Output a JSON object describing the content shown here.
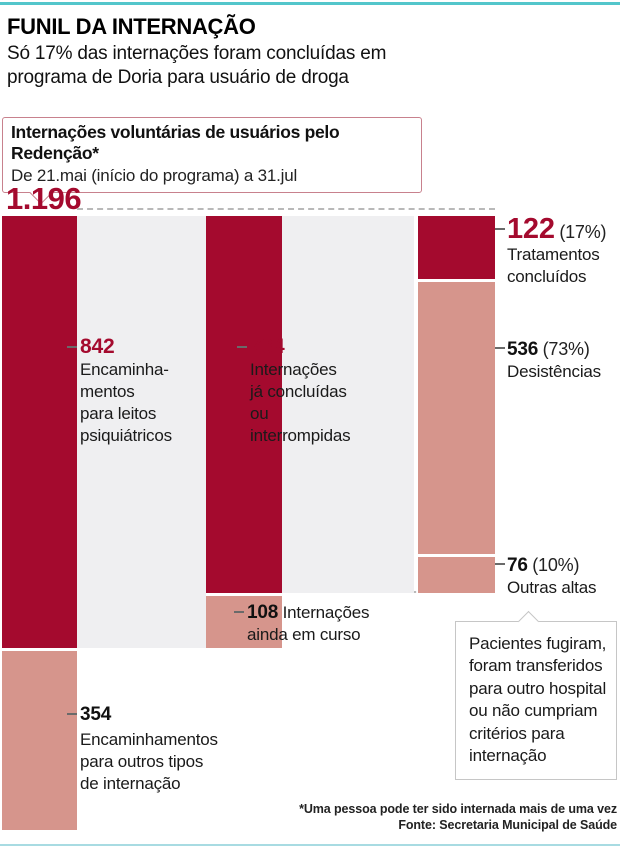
{
  "header": {
    "title": "FUNIL DA INTERNAÇÃO",
    "subtitle_lines": [
      "Só 17% das internações foram concluídas em",
      "programa de Doria para usuário de droga"
    ]
  },
  "callout": {
    "title": "Internações voluntárias de usuários pelo Redenção*",
    "period": "De 21.mai (início do programa) a 31.jul"
  },
  "total_display": "1.196",
  "labels": {
    "l842": {
      "value": "842",
      "lines": [
        "Encaminha-",
        "mentos",
        "para leitos",
        "psiquiátricos"
      ]
    },
    "l734": {
      "value": "734",
      "lines": [
        "Internações",
        "já concluídas",
        "ou",
        "interrompidas"
      ]
    },
    "l122": {
      "value": "122",
      "pct": "(17%)",
      "lines": [
        "Tratamentos",
        "concluídos"
      ]
    },
    "l536": {
      "value": "536",
      "pct": "(73%)",
      "lines": [
        "Desistências"
      ]
    },
    "l76": {
      "value": "76",
      "pct": "(10%)",
      "lines": [
        "Outras altas"
      ]
    },
    "l108": {
      "value": "108",
      "rest": "Internações",
      "line2": "ainda em curso"
    },
    "l354": {
      "value": "354",
      "lines": [
        "Encaminhamentos",
        "para outros tipos",
        "de internação"
      ]
    }
  },
  "note_box": {
    "lines": [
      "Pacientes fugiram,",
      "foram transferidos",
      "para outro hospital",
      "ou não cumpriam",
      "critérios para",
      "internação"
    ]
  },
  "footer": {
    "note": "*Uma pessoa pode ter sido internada mais de uma vez",
    "source": "Fonte: Secretaria Municipal de Saúde"
  },
  "colors": {
    "dark_red": "#a40a2e",
    "salmon": "#d6958c",
    "gray_block": "#efeff1",
    "teal_top": "#53c6cb",
    "teal_bottom": "#a8dbe2",
    "callout_border": "#c8818d",
    "note_border": "#c6c6c6"
  },
  "chart_data": {
    "type": "funnel",
    "title": "Internações voluntárias de usuários pelo Redenção*",
    "period": "De 21.mai (início do programa) a 31.jul",
    "total": 1196,
    "total_display": "1.196",
    "columns": [
      {
        "segments": [
          {
            "value": 842,
            "label": "Encaminhamentos para leitos psiquiátricos",
            "color": "dark_red"
          },
          {
            "value": 354,
            "label": "Encaminhamentos para outros tipos de internação",
            "color": "salmon"
          }
        ]
      },
      {
        "segments": [
          {
            "value": 734,
            "label": "Internações já concluídas ou interrompidas",
            "color": "dark_red"
          },
          {
            "value": 108,
            "label": "Internações ainda em curso",
            "color": "salmon"
          }
        ]
      },
      {
        "segments": [
          {
            "value": 122,
            "pct": "17%",
            "label": "Tratamentos concluídos",
            "color": "dark_red"
          },
          {
            "value": 536,
            "pct": "73%",
            "label": "Desistências",
            "color": "salmon"
          },
          {
            "value": 76,
            "pct": "10%",
            "label": "Outras altas",
            "color": "salmon"
          }
        ]
      }
    ],
    "annotation": "Pacientes fugiram, foram transferidos para outro hospital ou não cumpriam critérios para internação",
    "footnote": "*Uma pessoa pode ter sido internada mais de uma vez",
    "source": "Fonte: Secretaria Municipal de Saúde"
  }
}
